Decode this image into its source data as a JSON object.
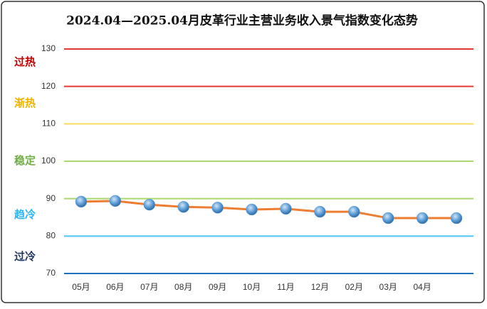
{
  "chart_data": {
    "type": "line",
    "title": "2024.04—2025.04月皮革行业主营业务收入景气指数变化态势",
    "categories": [
      "05月",
      "06月",
      "07月",
      "08月",
      "09月",
      "10月",
      "11月",
      "12月",
      "02月",
      "03月",
      "04月",
      null
    ],
    "series": [
      {
        "color": "#ed7d31",
        "marker_color": "#5b9bd5",
        "values": [
          89.2,
          89.4,
          88.4,
          87.8,
          87.6,
          87.1,
          87.3,
          86.5,
          86.5,
          84.8,
          84.8,
          84.8
        ]
      }
    ],
    "ylim": [
      70,
      130
    ],
    "yticks": [
      70,
      80,
      90,
      100,
      110,
      120,
      130
    ],
    "grid": true,
    "grid_colors": [
      "#1f6fbf",
      "#4fc3f7",
      "#a9d86e",
      "#a9d86e",
      "#ffd966",
      "#e53935",
      "#e53935"
    ],
    "zones": [
      {
        "label": "过热",
        "color": "#c00000"
      },
      {
        "label": "渐热",
        "color": "#f2b300"
      },
      {
        "label": "稳定",
        "color": "#70ad47"
      },
      {
        "label": "趋冷",
        "color": "#29b6f6"
      },
      {
        "label": "过冷",
        "color": "#1f3864"
      }
    ]
  }
}
